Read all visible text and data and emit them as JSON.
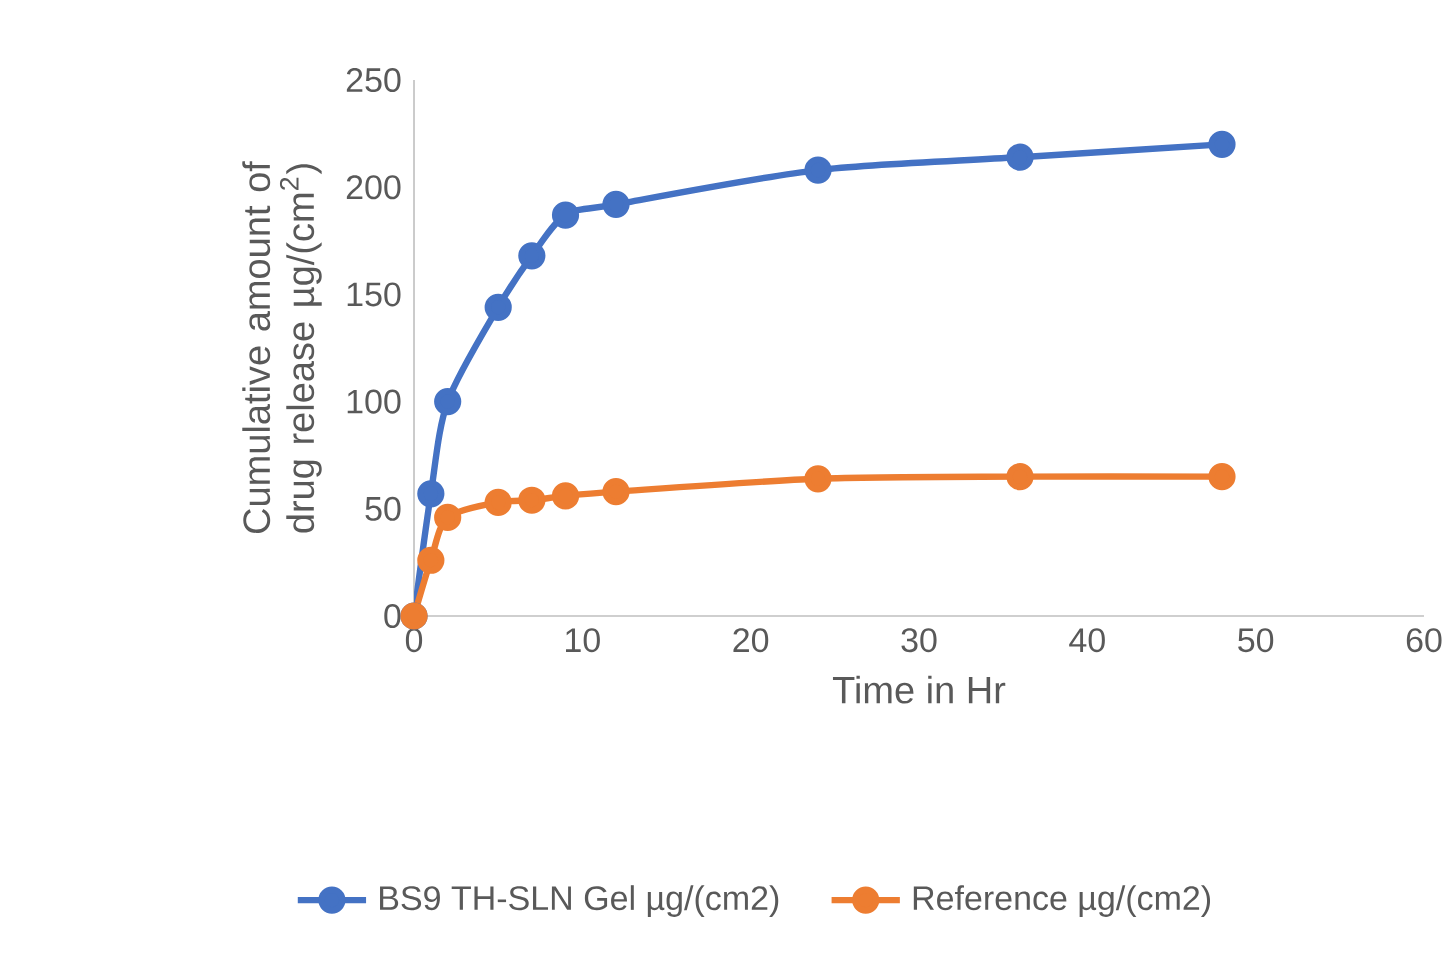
{
  "chart_data": {
    "type": "line",
    "xlabel": "Time in Hr",
    "ylabel": "Cumulative amount of drug release µg/(cm$^{2}$)",
    "x": [
      0,
      1,
      2,
      5,
      7,
      9,
      12,
      24,
      36,
      48
    ],
    "series": [
      {
        "name": "BS9 TH-SLN Gel µg/(cm2)",
        "color": "#4472c4",
        "values": [
          0,
          57,
          100,
          144,
          168,
          187,
          192,
          208,
          214,
          220
        ]
      },
      {
        "name": "Reference µg/(cm2)",
        "color": "#ed7d31",
        "values": [
          0,
          26,
          46,
          53,
          54,
          56,
          58,
          64,
          65,
          65
        ]
      }
    ],
    "xlim": [
      0,
      60
    ],
    "ylim": [
      0,
      250
    ],
    "xticks": [
      0,
      10,
      20,
      30,
      40,
      50,
      60
    ],
    "yticks": [
      0,
      50,
      100,
      150,
      200,
      250
    ],
    "grid": false,
    "legend": "bottom",
    "marker": "circle",
    "line_style": "solid"
  }
}
